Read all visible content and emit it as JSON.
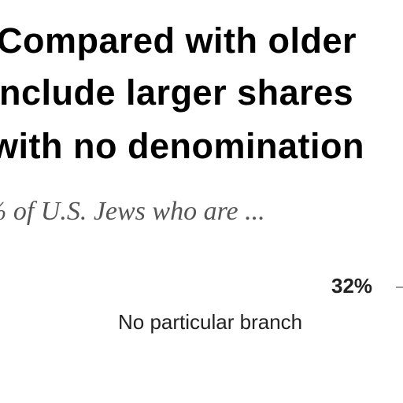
{
  "header": {
    "title_lines": [
      "Compared with older",
      "include larger shares",
      "with no denomination"
    ],
    "subtitle": "% of U.S. Jews who are ..."
  },
  "annotation": {
    "value_label": "32%",
    "label": "No particular branch"
  }
}
